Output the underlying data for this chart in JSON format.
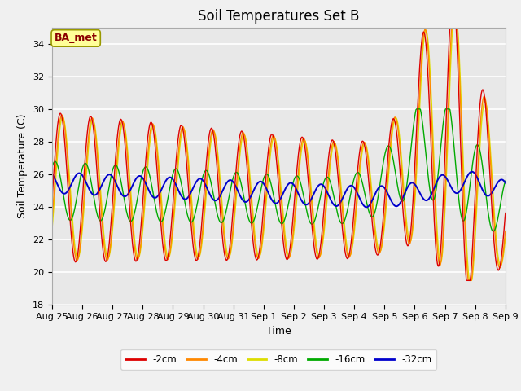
{
  "title": "Soil Temperatures Set B",
  "xlabel": "Time",
  "ylabel": "Soil Temperature (C)",
  "ylim": [
    18,
    35
  ],
  "yticks": [
    18,
    20,
    22,
    24,
    26,
    28,
    30,
    32,
    34
  ],
  "x_labels": [
    "Aug 25",
    "Aug 26",
    "Aug 27",
    "Aug 28",
    "Aug 29",
    "Aug 30",
    "Aug 31",
    "Sep 1",
    "Sep 2",
    "Sep 3",
    "Sep 4",
    "Sep 5",
    "Sep 6",
    "Sep 7",
    "Sep 8",
    "Sep 9"
  ],
  "series_labels": [
    "-2cm",
    "-4cm",
    "-8cm",
    "-16cm",
    "-32cm"
  ],
  "series_colors": [
    "#dd0000",
    "#ff8800",
    "#dddd00",
    "#00aa00",
    "#0000cc"
  ],
  "legend_label": "BA_met",
  "background_color": "#e8e8e8",
  "fig_bg_color": "#f0f0f0",
  "grid_color": "#ffffff",
  "title_fontsize": 12,
  "label_fontsize": 9,
  "tick_fontsize": 8
}
